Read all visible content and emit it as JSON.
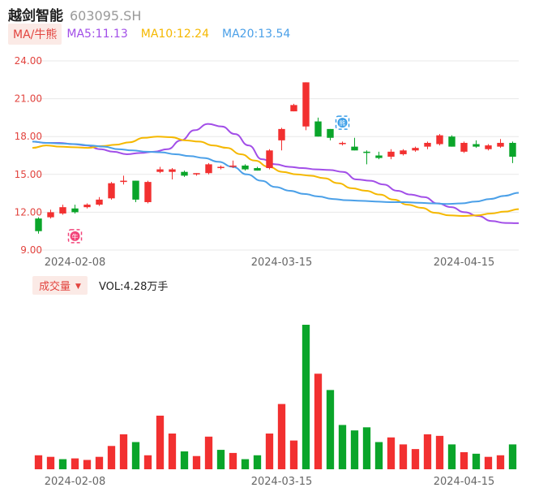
{
  "stock": {
    "name": "越剑智能",
    "code": "603095.SH"
  },
  "ma": {
    "tag": "MA/牛熊",
    "items": [
      {
        "label": "MA5:11.13",
        "color": "#a24ee8"
      },
      {
        "label": "MA10:12.24",
        "color": "#f5b800"
      },
      {
        "label": "MA20:13.54",
        "color": "#4ba0e8"
      }
    ]
  },
  "volume": {
    "tag": "成交量",
    "value_label": "VOL:4.28万手"
  },
  "colors": {
    "up": "#f23030",
    "down": "#0aa52a",
    "grid": "#e8e8e8",
    "axis_text": "#666666",
    "price_tick": "#e2443f"
  },
  "markers": [
    {
      "label": "牛",
      "index": 3,
      "price": 10.1,
      "color": "#f2447a"
    },
    {
      "label": "熊",
      "index": 25,
      "price": 19.1,
      "color": "#3a9ee8"
    }
  ],
  "chart_data": {
    "type": "candlestick",
    "price_axis": {
      "ticks": [
        "24.00",
        "21.00",
        "18.00",
        "15.00",
        "12.00",
        "9.00"
      ],
      "min": 9,
      "max": 24
    },
    "x_tick_labels": [
      {
        "index": 3,
        "label": "2024-02-08"
      },
      {
        "index": 20,
        "label": "2024-03-15"
      },
      {
        "index": 35,
        "label": "2024-04-15"
      }
    ],
    "ohlc": [
      [
        11.5,
        11.6,
        10.3,
        10.5
      ],
      [
        11.6,
        12.2,
        11.5,
        12.0
      ],
      [
        11.9,
        12.6,
        11.8,
        12.4
      ],
      [
        12.3,
        12.6,
        11.9,
        12.0
      ],
      [
        12.4,
        12.7,
        12.3,
        12.6
      ],
      [
        12.6,
        13.2,
        12.5,
        13.0
      ],
      [
        13.1,
        14.4,
        13.0,
        14.3
      ],
      [
        14.4,
        14.9,
        14.2,
        14.5
      ],
      [
        14.5,
        14.5,
        12.8,
        13.0
      ],
      [
        12.8,
        14.5,
        12.7,
        14.4
      ],
      [
        15.2,
        15.6,
        15.1,
        15.4
      ],
      [
        15.2,
        15.5,
        14.6,
        15.4
      ],
      [
        15.2,
        15.3,
        14.8,
        14.9
      ],
      [
        15.0,
        15.1,
        14.9,
        15.1
      ],
      [
        15.1,
        15.9,
        15.0,
        15.8
      ],
      [
        15.5,
        15.7,
        15.4,
        15.6
      ],
      [
        15.6,
        16.1,
        15.5,
        15.7
      ],
      [
        15.7,
        15.8,
        15.3,
        15.4
      ],
      [
        15.5,
        15.6,
        15.3,
        15.3
      ],
      [
        15.5,
        17.0,
        15.4,
        16.9
      ],
      [
        17.7,
        18.7,
        16.9,
        18.6
      ],
      [
        20.0,
        20.6,
        20.0,
        20.5
      ],
      [
        18.8,
        22.3,
        18.5,
        22.3
      ],
      [
        19.2,
        19.5,
        18.0,
        18.0
      ],
      [
        18.6,
        18.6,
        17.7,
        17.9
      ],
      [
        17.4,
        17.6,
        17.3,
        17.5
      ],
      [
        17.2,
        17.9,
        16.9,
        16.9
      ],
      [
        16.8,
        16.9,
        15.8,
        16.7
      ],
      [
        16.5,
        16.8,
        16.2,
        16.3
      ],
      [
        16.4,
        17.0,
        16.2,
        16.8
      ],
      [
        16.6,
        17.0,
        16.5,
        16.9
      ],
      [
        16.9,
        17.2,
        16.8,
        17.1
      ],
      [
        17.2,
        17.6,
        17.0,
        17.5
      ],
      [
        17.4,
        18.2,
        17.3,
        18.1
      ],
      [
        18.0,
        18.1,
        17.2,
        17.2
      ],
      [
        16.8,
        17.6,
        16.7,
        17.5
      ],
      [
        17.4,
        17.7,
        17.1,
        17.2
      ],
      [
        17.0,
        17.4,
        16.9,
        17.3
      ],
      [
        17.2,
        17.8,
        17.1,
        17.5
      ],
      [
        17.5,
        17.6,
        15.9,
        16.4
      ]
    ],
    "ma5": [
      17.6,
      17.5,
      17.5,
      17.4,
      17.3,
      17.0,
      16.8,
      16.6,
      16.7,
      16.8,
      17.0,
      17.7,
      18.5,
      19.0,
      18.8,
      18.2,
      17.3,
      16.2,
      15.8,
      15.6,
      15.5,
      15.4,
      15.35,
      15.2,
      14.6,
      14.5,
      14.2,
      13.7,
      13.4,
      13.2,
      12.7,
      12.4,
      12.0,
      11.7,
      11.3,
      11.15,
      11.13
    ],
    "ma10": [
      17.1,
      17.3,
      17.2,
      17.15,
      17.1,
      17.25,
      17.35,
      17.55,
      17.9,
      18.0,
      17.95,
      17.7,
      17.6,
      17.3,
      17.1,
      16.6,
      16.1,
      15.6,
      15.2,
      15.0,
      14.9,
      14.7,
      14.3,
      13.9,
      13.7,
      13.4,
      13.0,
      12.6,
      12.35,
      11.95,
      11.75,
      11.7,
      11.75,
      11.9,
      12.05,
      12.24
    ],
    "ma20": [
      17.6,
      17.5,
      17.45,
      17.4,
      17.3,
      17.2,
      17.0,
      16.9,
      16.8,
      16.75,
      16.6,
      16.45,
      16.3,
      16.0,
      15.6,
      15.0,
      14.5,
      14.0,
      13.7,
      13.45,
      13.25,
      13.05,
      12.95,
      12.9,
      12.85,
      12.8,
      12.8,
      12.75,
      12.7,
      12.65,
      12.7,
      12.85,
      13.05,
      13.3,
      13.54
    ],
    "volume": [
      1.8,
      1.6,
      1.3,
      1.4,
      1.2,
      1.6,
      3.0,
      4.5,
      3.5,
      1.8,
      6.9,
      4.6,
      2.3,
      1.7,
      4.2,
      2.5,
      2.1,
      1.3,
      1.8,
      4.6,
      8.4,
      3.7,
      18.6,
      12.3,
      10.2,
      5.7,
      5.0,
      5.4,
      3.5,
      4.1,
      3.2,
      2.6,
      4.5,
      4.3,
      3.2,
      2.2,
      2.0,
      1.6,
      1.8,
      3.2
    ],
    "volume_direction": [
      "d",
      "d",
      "u",
      "d",
      "d",
      "d",
      "d",
      "d",
      "u",
      "d",
      "d",
      "d",
      "u",
      "d",
      "d",
      "u",
      "d",
      "u",
      "u",
      "d",
      "d",
      "d",
      "u",
      "d",
      "u",
      "u",
      "u",
      "u",
      "u",
      "d",
      "d",
      "d",
      "d",
      "d",
      "u",
      "d",
      "u",
      "d",
      "d",
      "u"
    ]
  }
}
